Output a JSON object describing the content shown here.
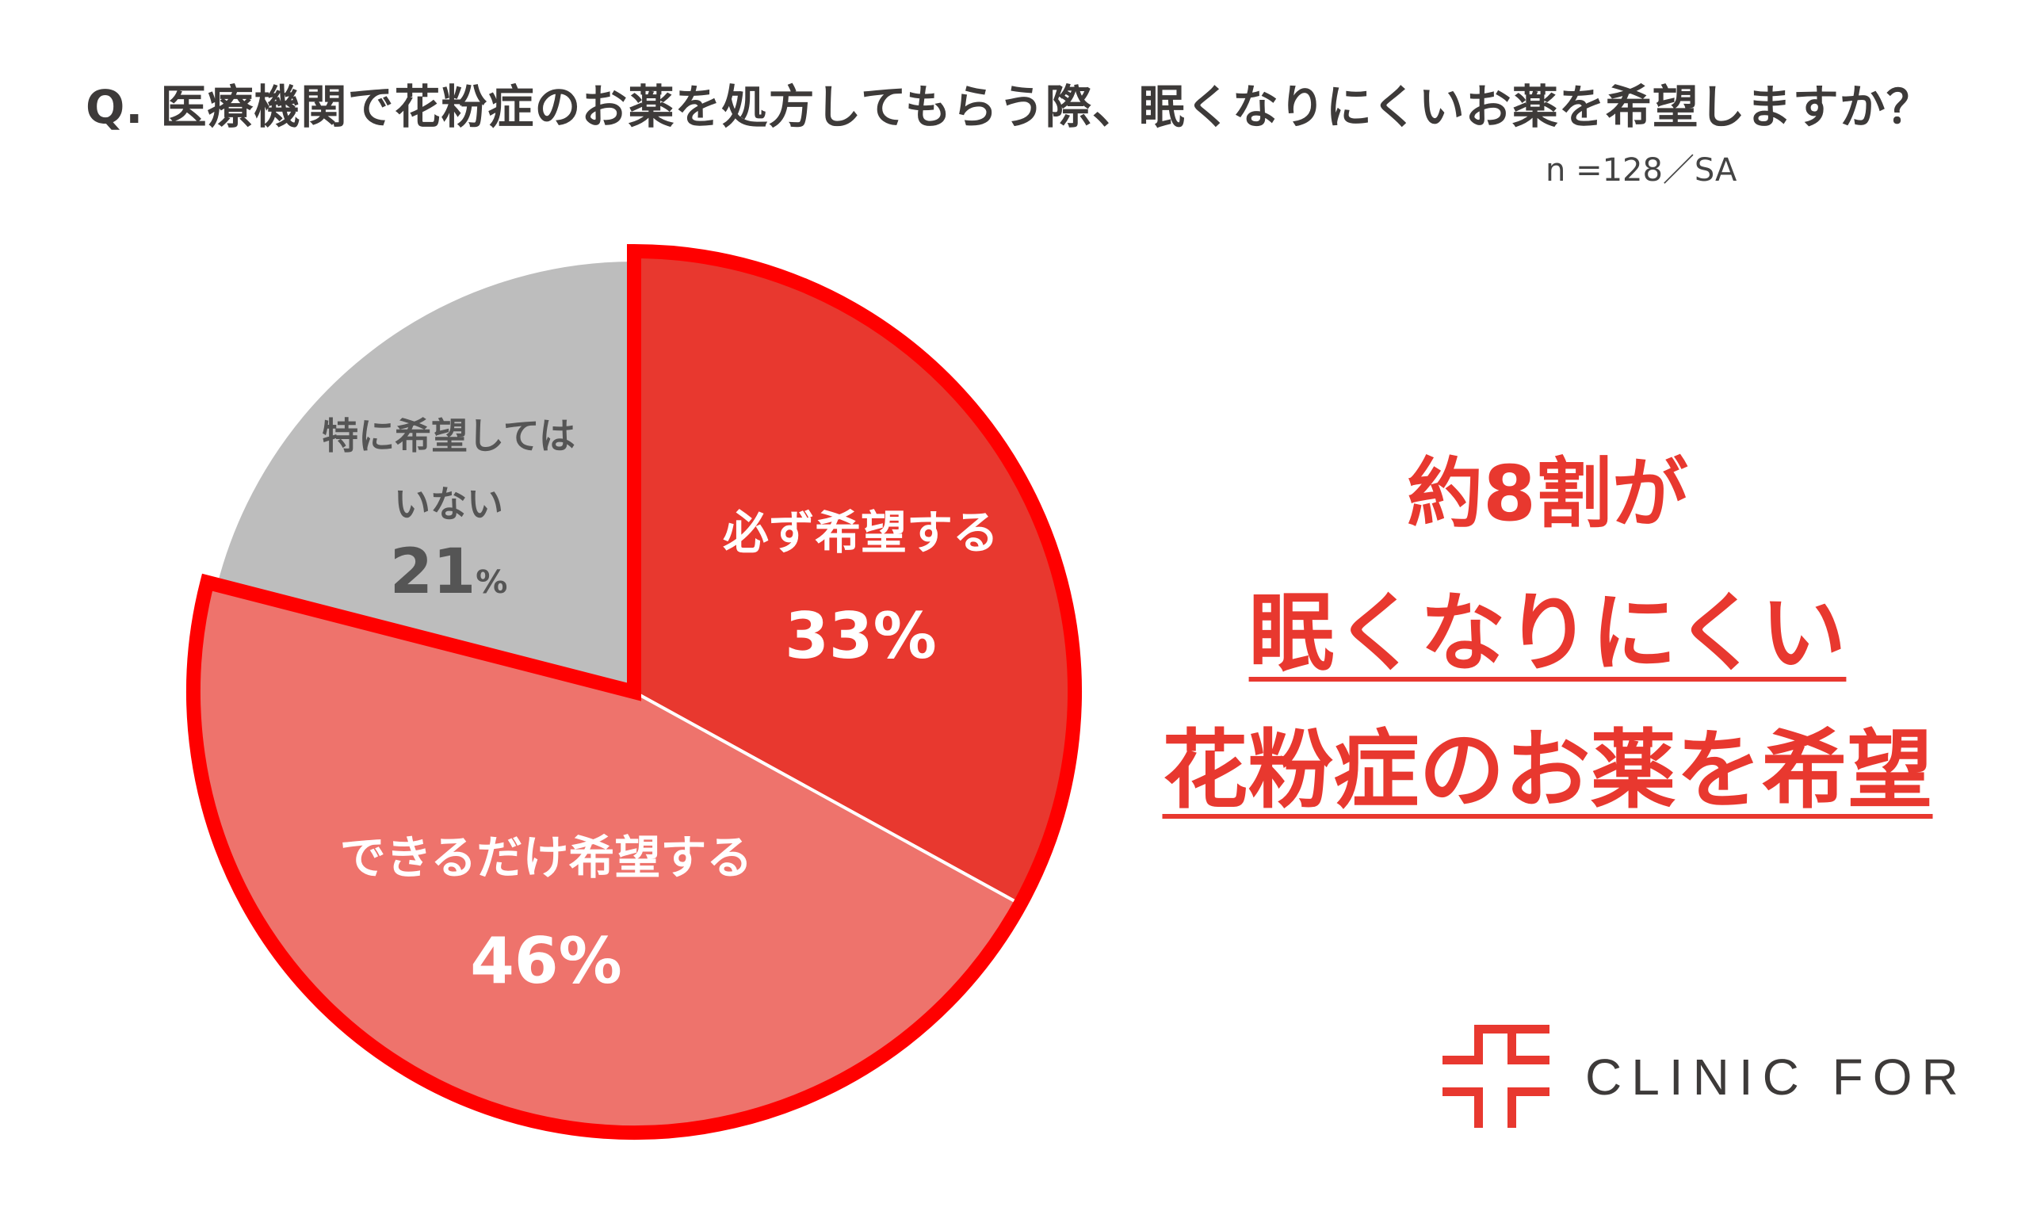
{
  "title": "Q. 医療機関で花粉症のお薬を処方してもらう際、眠くなりにくいお薬を希望しますか？",
  "note": "n =128／SA",
  "headline": {
    "line1": "約8割が",
    "line2": "眠くなりにくい",
    "line3": "花粉症のお薬を希望"
  },
  "logo": {
    "text": "CLINIC FOR",
    "color": "#e8382f"
  },
  "chart_data": {
    "type": "pie",
    "start": "12 o'clock, clockwise",
    "slices": [
      {
        "label": "必ず希望する",
        "value": 33,
        "value_label": "33%",
        "color": "#e8382f"
      },
      {
        "label": "できるだけ希望する",
        "value": 46,
        "value_label": "46%",
        "color": "#ee736c"
      },
      {
        "label_lines": [
          "特に希望しては",
          "いない"
        ],
        "value": 21,
        "value_label": "21",
        "unit": "%",
        "color": "#bdbdbd"
      }
    ],
    "highlight_outline_color": "#ff0000"
  }
}
